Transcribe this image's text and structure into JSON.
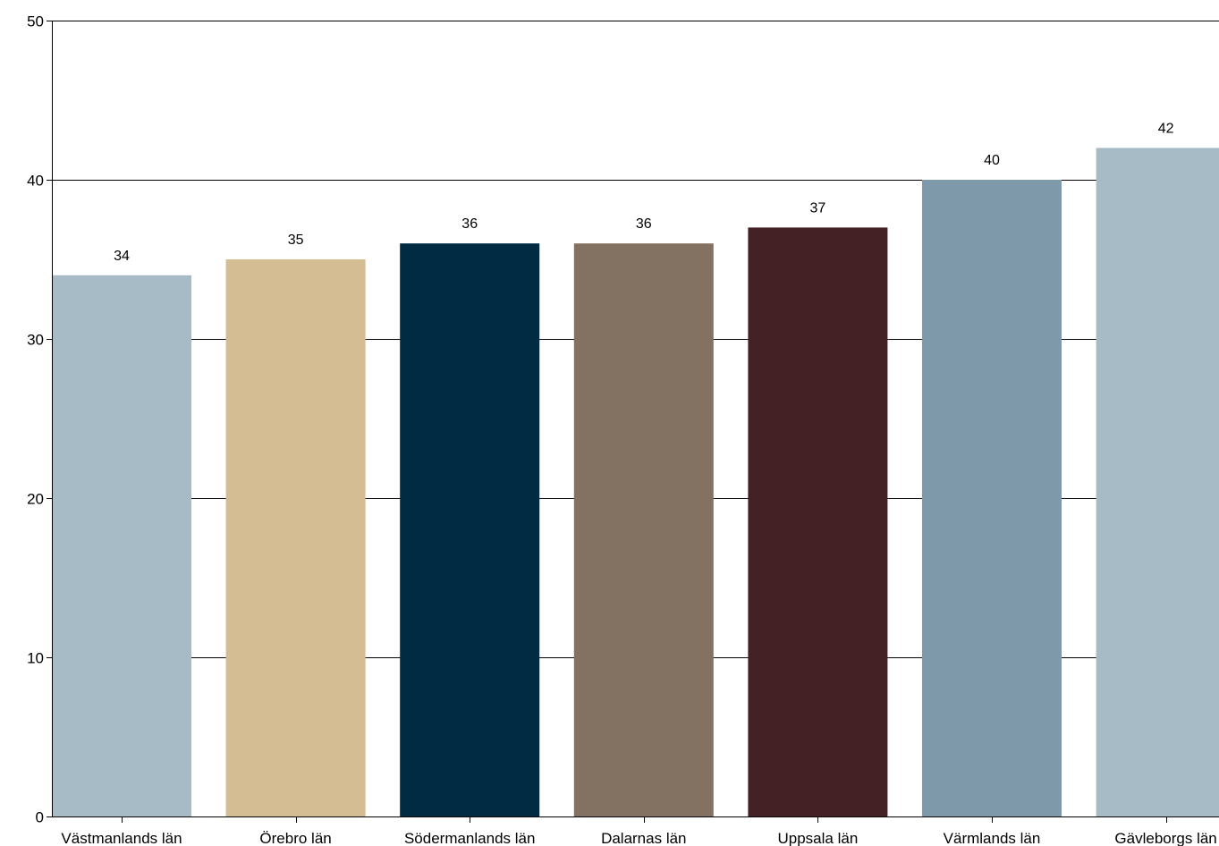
{
  "chart_data": {
    "type": "bar",
    "title": "",
    "xlabel": "",
    "ylabel": "",
    "categories": [
      "Västmanlands län",
      "Örebro län",
      "Södermanlands län",
      "Dalarnas län",
      "Uppsala län",
      "Värmlands län",
      "Gävleborgs län"
    ],
    "values": [
      34,
      35,
      36,
      36,
      37,
      40,
      42
    ],
    "value_labels": [
      "34",
      "35",
      "36",
      "36",
      "37",
      "40",
      "42"
    ],
    "colors": [
      "#a6bbc6",
      "#d4bd93",
      "#002b42",
      "#837262",
      "#432125",
      "#7e99aa",
      "#a6bbc6"
    ],
    "ylim": [
      0,
      50
    ],
    "yticks": [
      0,
      10,
      20,
      30,
      40,
      50
    ],
    "ytick_labels": [
      "0",
      "10",
      "20",
      "30",
      "40",
      "50"
    ],
    "grid": true,
    "legend": "none"
  }
}
